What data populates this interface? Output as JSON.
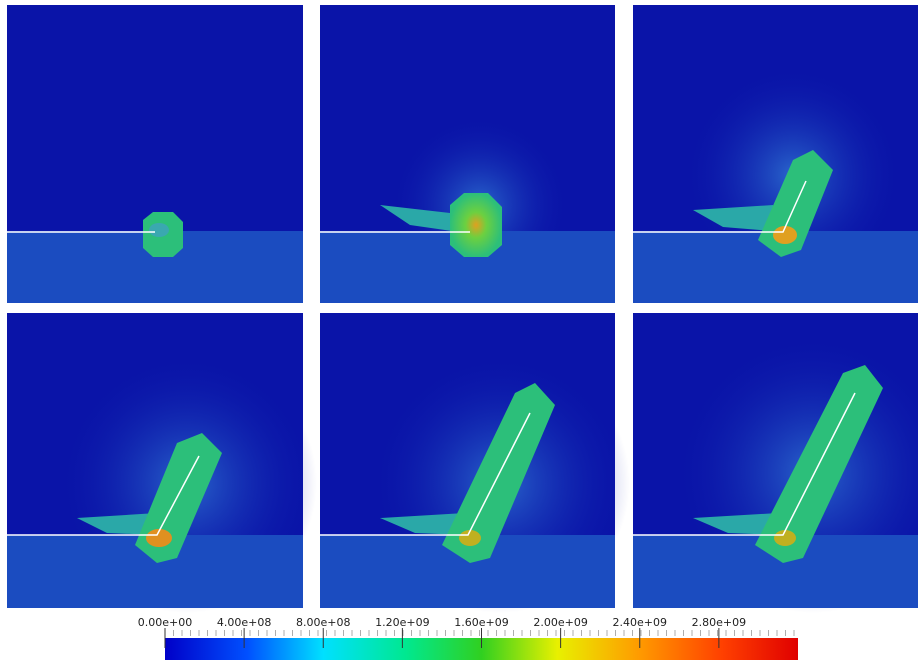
{
  "colorbar": {
    "range": [
      0,
      3200000000
    ],
    "ticks": [
      {
        "value": 0,
        "label": "0.00e+00"
      },
      {
        "value": 400000000,
        "label": "4.00e+08"
      },
      {
        "value": 800000000,
        "label": "8.00e+08"
      },
      {
        "value": 1200000000,
        "label": "1.20e+09"
      },
      {
        "value": 1600000000,
        "label": "1.60e+09"
      },
      {
        "value": 2000000000,
        "label": "2.00e+09"
      },
      {
        "value": 2400000000,
        "label": "2.40e+09"
      },
      {
        "value": 2800000000,
        "label": "2.80e+09"
      }
    ]
  }
}
